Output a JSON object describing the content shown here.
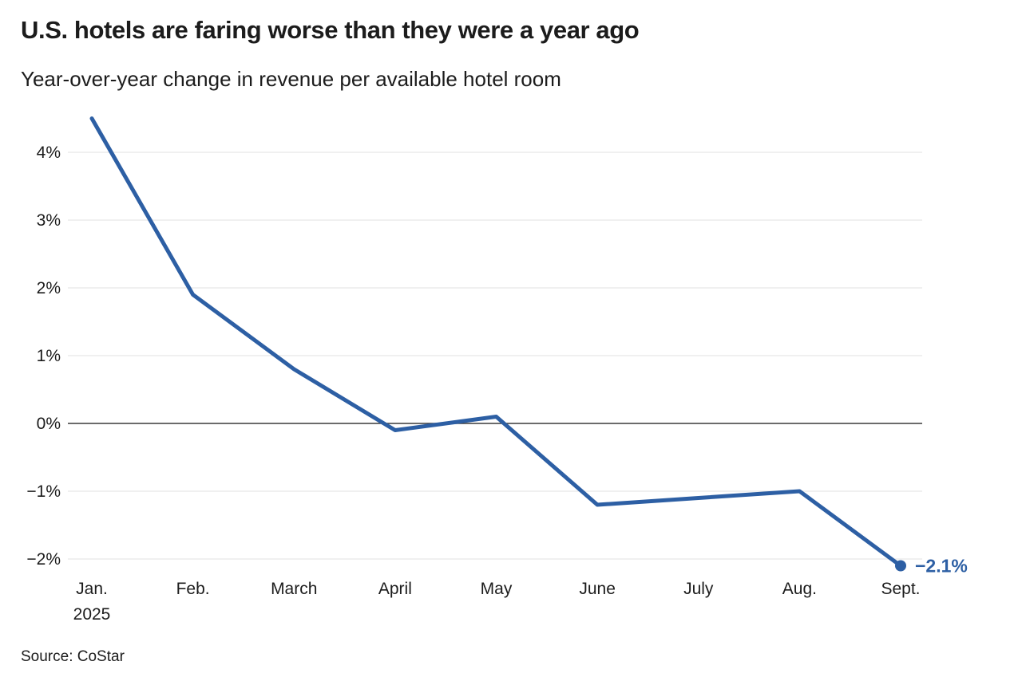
{
  "chart_data": {
    "type": "line",
    "title": "U.S. hotels are faring worse than they were a year ago",
    "subtitle": "Year-over-year change in revenue per available hotel room",
    "source_label": "Source: CoStar",
    "categories": [
      "Jan.",
      "Feb.",
      "March",
      "April",
      "May",
      "June",
      "July",
      "Aug.",
      "Sept."
    ],
    "first_category_year_line": "2025",
    "values": [
      4.5,
      1.9,
      0.8,
      -0.1,
      0.1,
      -1.2,
      -1.1,
      -1.0,
      -2.1
    ],
    "y_ticks": [
      {
        "value": 4,
        "label": "4%"
      },
      {
        "value": 3,
        "label": "3%"
      },
      {
        "value": 2,
        "label": "2%"
      },
      {
        "value": 1,
        "label": "1%"
      },
      {
        "value": 0,
        "label": "0%"
      },
      {
        "value": -1,
        "label": "−1%"
      },
      {
        "value": -2,
        "label": "−2%"
      }
    ],
    "ylim": [
      -2.45,
      4.72
    ],
    "xlabel": "",
    "ylabel": "",
    "grid": "horizontal-only",
    "zero_baseline": true,
    "legend": "none",
    "end_annotation": {
      "text": "−2.1%",
      "category": "Sept.",
      "value": -2.1
    },
    "colors": {
      "line": "#2d5fa4",
      "annotation": "#2d5fa4",
      "grid": "#e2e2e2",
      "zero_line": "#3a3a3a",
      "text": "#1c1c1c"
    }
  }
}
